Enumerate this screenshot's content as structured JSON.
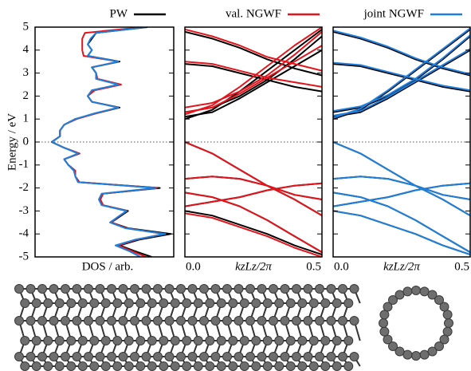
{
  "chart_data": [
    {
      "type": "dos",
      "xlabel": "DOS / arb.",
      "ylabel": "Energy / eV",
      "y": [
        -5,
        -4.75,
        -4.5,
        -4.25,
        -4,
        -3.75,
        -3.5,
        -3.25,
        -3,
        -2.75,
        -2.5,
        -2.25,
        -2,
        -1.75,
        -1.5,
        -1.25,
        -1,
        -0.75,
        -0.5,
        -0.25,
        0,
        0.25,
        0.5,
        0.75,
        1,
        1.25,
        1.5,
        1.75,
        2,
        2.25,
        2.5,
        2.75,
        3,
        3.25,
        3.5,
        3.75,
        4,
        4.25,
        4.5,
        4.75,
        5
      ],
      "xlim": [
        0,
        1
      ],
      "ylim": [
        -5,
        5
      ],
      "yticks": [
        -5,
        -4,
        -3,
        -2,
        -1,
        0,
        1,
        2,
        3,
        4,
        5
      ],
      "hlines": [
        0
      ],
      "series": [
        {
          "name": "PW",
          "color": "#000000",
          "values": [
            0.84,
            0.72,
            0.61,
            0.75,
            0.98,
            0.67,
            0.55,
            0.61,
            0.67,
            0.49,
            0.47,
            0.49,
            0.9,
            0.32,
            0.29,
            0.29,
            0.24,
            0.21,
            0.32,
            0.21,
            0.12,
            0.18,
            0.18,
            0.21,
            0.29,
            0.44,
            0.61,
            0.41,
            0.38,
            0.41,
            0.61,
            0.44,
            0.44,
            0.41,
            0.61,
            0.38,
            0.41,
            0.38,
            0.41,
            0.44,
            0.81
          ]
        },
        {
          "color": "#e3141b",
          "values": [
            0.8,
            0.7,
            0.6,
            0.73,
            0.93,
            0.66,
            0.55,
            0.6,
            0.66,
            0.49,
            0.47,
            0.49,
            0.88,
            0.32,
            0.29,
            0.29,
            0.24,
            0.21,
            0.32,
            0.21,
            0.12,
            0.18,
            0.18,
            0.21,
            0.3,
            0.44,
            0.6,
            0.41,
            0.38,
            0.43,
            0.62,
            0.45,
            0.44,
            0.41,
            0.6,
            0.35,
            0.34,
            0.34,
            0.34,
            0.36,
            0.78
          ]
        },
        {
          "color": "#1f80dc",
          "values": [
            0.76,
            0.68,
            0.58,
            0.72,
            0.94,
            0.65,
            0.54,
            0.6,
            0.66,
            0.48,
            0.46,
            0.48,
            0.87,
            0.31,
            0.29,
            0.28,
            0.24,
            0.21,
            0.31,
            0.21,
            0.12,
            0.18,
            0.18,
            0.21,
            0.29,
            0.43,
            0.6,
            0.41,
            0.38,
            0.41,
            0.6,
            0.44,
            0.44,
            0.41,
            0.6,
            0.38,
            0.41,
            0.38,
            0.4,
            0.44,
            0.8
          ]
        }
      ]
    },
    {
      "type": "line",
      "xlabel": "kzLz/2π",
      "x": [
        0,
        0.1,
        0.2,
        0.3,
        0.4,
        0.5
      ],
      "xlim": [
        0,
        0.5
      ],
      "xticks": [
        {
          "value": 0,
          "label": "0.0"
        },
        0.5
      ],
      "ylim": [
        -5,
        5
      ],
      "yticks": [
        -5,
        -4,
        -3,
        -2,
        -1,
        0,
        1,
        2,
        3,
        4,
        5
      ],
      "hlines": [
        0
      ],
      "series": [
        {
          "color": "#000000",
          "values": [
            1.0,
            1.4,
            2.2,
            3.1,
            4.0,
            4.9
          ]
        },
        {
          "color": "#000000",
          "values": [
            1.1,
            1.3,
            1.9,
            2.6,
            3.3,
            4.0
          ]
        },
        {
          "color": "#000000",
          "values": [
            1.3,
            1.5,
            2.0,
            2.7,
            3.6,
            4.6
          ]
        },
        {
          "color": "#000000",
          "values": [
            4.8,
            4.5,
            4.1,
            3.6,
            3.2,
            2.9
          ]
        },
        {
          "color": "#000000",
          "values": [
            3.4,
            3.3,
            3.0,
            2.7,
            2.4,
            2.2
          ]
        },
        {
          "color": "#000000",
          "values": [
            0.0,
            -0.5,
            -1.2,
            -1.9,
            -2.3,
            -2.5
          ]
        },
        {
          "color": "#000000",
          "values": [
            -1.6,
            -1.5,
            -1.6,
            -1.9,
            -2.5,
            -3.2
          ]
        },
        {
          "color": "#000000",
          "values": [
            -2.2,
            -2.4,
            -2.8,
            -3.4,
            -4.1,
            -4.8
          ]
        },
        {
          "color": "#000000",
          "values": [
            -2.8,
            -2.6,
            -2.4,
            -2.1,
            -1.9,
            -1.8
          ]
        },
        {
          "color": "#000000",
          "values": [
            -3.0,
            -3.2,
            -3.6,
            -4.0,
            -4.5,
            -4.9
          ]
        },
        {
          "name": "val. NGWF",
          "color": "#e3141b",
          "values": [
            1.2,
            1.6,
            2.4,
            3.3,
            4.2,
            5.0
          ]
        },
        {
          "color": "#e3141b",
          "values": [
            1.3,
            1.5,
            2.1,
            2.8,
            3.5,
            4.2
          ]
        },
        {
          "color": "#e3141b",
          "values": [
            1.5,
            1.7,
            2.2,
            2.9,
            3.8,
            4.8
          ]
        },
        {
          "color": "#e3141b",
          "values": [
            4.9,
            4.6,
            4.2,
            3.7,
            3.4,
            3.1
          ]
        },
        {
          "color": "#e3141b",
          "values": [
            3.5,
            3.4,
            3.1,
            2.8,
            2.6,
            2.4
          ]
        },
        {
          "color": "#e3141b",
          "values": [
            0.0,
            -0.5,
            -1.2,
            -1.9,
            -2.3,
            -2.5
          ]
        },
        {
          "color": "#e3141b",
          "values": [
            -1.6,
            -1.5,
            -1.6,
            -1.9,
            -2.5,
            -3.2
          ]
        },
        {
          "color": "#e3141b",
          "values": [
            -2.2,
            -2.4,
            -2.8,
            -3.4,
            -4.1,
            -4.8
          ]
        },
        {
          "color": "#e3141b",
          "values": [
            -2.8,
            -2.6,
            -2.4,
            -2.1,
            -1.9,
            -1.8
          ]
        },
        {
          "color": "#e3141b",
          "values": [
            -3.1,
            -3.3,
            -3.7,
            -4.1,
            -4.6,
            -5.0
          ]
        }
      ]
    },
    {
      "type": "line",
      "xlabel": "kzLz/2π",
      "x": [
        0,
        0.1,
        0.2,
        0.3,
        0.4,
        0.5
      ],
      "xlim": [
        0,
        0.5
      ],
      "xticks": [
        {
          "value": 0,
          "label": "0.0"
        },
        0.5
      ],
      "ylim": [
        -5,
        5
      ],
      "yticks": [
        -5,
        -4,
        -3,
        -2,
        -1,
        0,
        1,
        2,
        3,
        4,
        5
      ],
      "hlines": [
        0
      ],
      "series": [
        {
          "color": "#000000",
          "values": [
            1.0,
            1.4,
            2.2,
            3.1,
            4.0,
            4.9
          ]
        },
        {
          "color": "#000000",
          "values": [
            1.1,
            1.3,
            1.9,
            2.6,
            3.3,
            4.0
          ]
        },
        {
          "color": "#000000",
          "values": [
            1.3,
            1.5,
            2.0,
            2.7,
            3.6,
            4.6
          ]
        },
        {
          "color": "#000000",
          "values": [
            4.8,
            4.5,
            4.1,
            3.6,
            3.2,
            2.9
          ]
        },
        {
          "color": "#000000",
          "values": [
            3.4,
            3.3,
            3.0,
            2.7,
            2.4,
            2.2
          ]
        },
        {
          "color": "#000000",
          "values": [
            0.0,
            -0.5,
            -1.2,
            -1.9,
            -2.3,
            -2.5
          ]
        },
        {
          "color": "#000000",
          "values": [
            -1.6,
            -1.5,
            -1.6,
            -1.9,
            -2.5,
            -3.2
          ]
        },
        {
          "color": "#000000",
          "values": [
            -2.2,
            -2.4,
            -2.8,
            -3.4,
            -4.1,
            -4.8
          ]
        },
        {
          "color": "#000000",
          "values": [
            -2.8,
            -2.6,
            -2.4,
            -2.1,
            -1.9,
            -1.8
          ]
        },
        {
          "color": "#000000",
          "values": [
            -3.0,
            -3.2,
            -3.6,
            -4.0,
            -4.5,
            -4.9
          ]
        },
        {
          "name": "joint NGWF",
          "color": "#1f80dc",
          "values": [
            1.05,
            1.45,
            2.25,
            3.15,
            4.05,
            4.95
          ]
        },
        {
          "color": "#1f80dc",
          "values": [
            1.15,
            1.35,
            1.95,
            2.65,
            3.35,
            4.05
          ]
        },
        {
          "color": "#1f80dc",
          "values": [
            1.35,
            1.55,
            2.05,
            2.75,
            3.65,
            4.65
          ]
        },
        {
          "color": "#1f80dc",
          "values": [
            4.85,
            4.55,
            4.15,
            3.65,
            3.25,
            2.95
          ]
        },
        {
          "color": "#1f80dc",
          "values": [
            3.45,
            3.35,
            3.05,
            2.75,
            2.45,
            2.25
          ]
        },
        {
          "color": "#1f80dc",
          "values": [
            0.0,
            -0.5,
            -1.2,
            -1.9,
            -2.3,
            -2.5
          ]
        },
        {
          "color": "#1f80dc",
          "values": [
            -1.6,
            -1.5,
            -1.6,
            -1.9,
            -2.5,
            -3.2
          ]
        },
        {
          "color": "#1f80dc",
          "values": [
            -2.2,
            -2.4,
            -2.8,
            -3.4,
            -4.1,
            -4.8
          ]
        },
        {
          "color": "#1f80dc",
          "values": [
            -2.8,
            -2.6,
            -2.4,
            -2.1,
            -1.9,
            -1.8
          ]
        },
        {
          "color": "#1f80dc",
          "values": [
            -3.0,
            -3.2,
            -3.6,
            -4.0,
            -4.5,
            -4.9
          ]
        }
      ]
    }
  ]
}
